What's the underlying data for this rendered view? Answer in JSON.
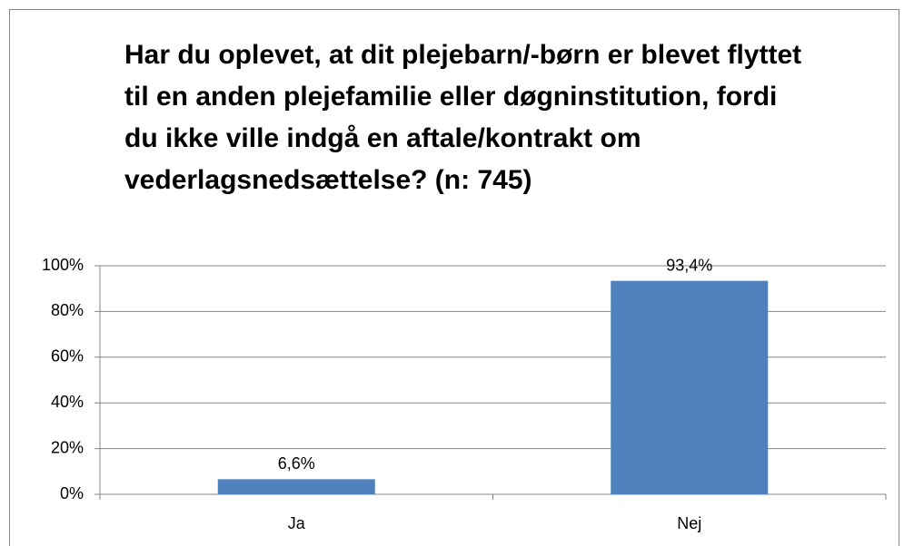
{
  "chart_data": {
    "type": "bar",
    "title": "Har du oplevet, at dit plejebarn/-børn er blevet flyttet til en anden plejefamilie eller døgninstitution, fordi du ikke ville indgå en aftale/kontrakt om vederlagsnedsættelse? (n: 745)",
    "categories": [
      "Ja",
      "Nej"
    ],
    "values": [
      6.6,
      93.4
    ],
    "value_labels": [
      "6,6%",
      "93,4%"
    ],
    "color": "#4f81bd",
    "ylim": [
      0,
      100
    ],
    "yticks": [
      {
        "value": 0,
        "label": "0%"
      },
      {
        "value": 20,
        "label": "20%"
      },
      {
        "value": 40,
        "label": "40%"
      },
      {
        "value": 60,
        "label": "60%"
      },
      {
        "value": 80,
        "label": "80%"
      },
      {
        "value": 100,
        "label": "100%"
      }
    ],
    "grid": true
  }
}
